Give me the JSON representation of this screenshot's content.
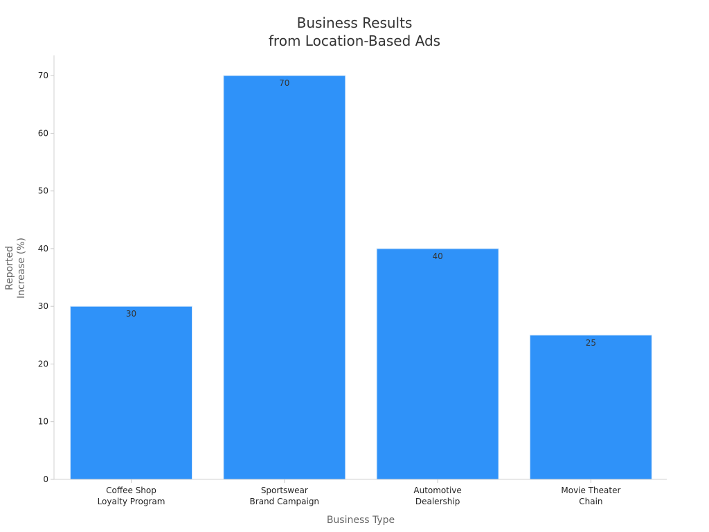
{
  "chart_data": {
    "type": "bar",
    "title": [
      "Business Results",
      "from Location-Based Ads"
    ],
    "xlabel": "Business Type",
    "ylabel": [
      "Reported",
      "Increase (%)"
    ],
    "categories": [
      [
        "Coffee Shop",
        "Loyalty Program"
      ],
      [
        "Sportswear",
        "Brand Campaign"
      ],
      [
        "Automotive",
        "Dealership"
      ],
      [
        "Movie Theater",
        "Chain"
      ]
    ],
    "values": [
      30,
      70,
      40,
      25
    ],
    "data_labels": [
      "30",
      "70",
      "40",
      "25"
    ],
    "ylim": [
      0,
      73.5
    ],
    "yticks": [
      0,
      10,
      20,
      30,
      40,
      50,
      60,
      70
    ],
    "ytick_labels": [
      "0",
      "10",
      "20",
      "30",
      "40",
      "50",
      "60",
      "70"
    ],
    "grid": false,
    "bar_color": "#2f92f9",
    "bar_edge_color": "#d6e8fb"
  }
}
